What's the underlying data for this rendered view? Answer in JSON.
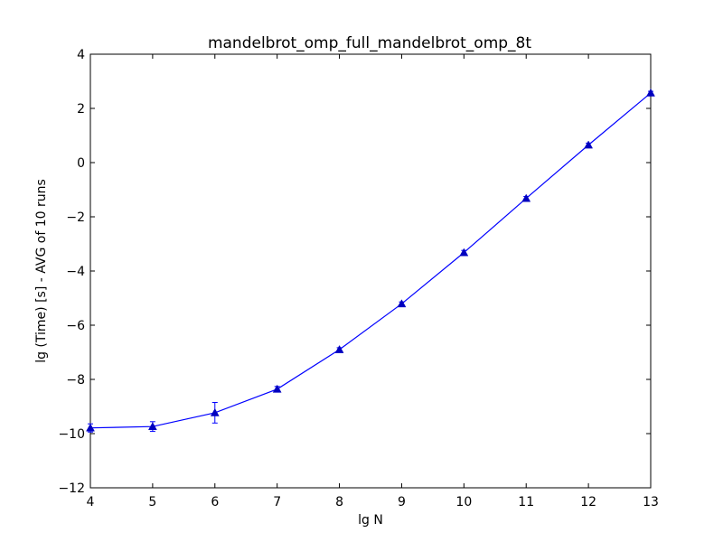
{
  "chart_data": {
    "type": "line",
    "title": "mandelbrot_omp_full_mandelbrot_omp_8t",
    "xlabel": "lg N",
    "ylabel": "lg (Time) [s] - AVG of 10 runs",
    "xlim": [
      4,
      13
    ],
    "ylim": [
      -12,
      4
    ],
    "xticks": [
      4,
      5,
      6,
      7,
      8,
      9,
      10,
      11,
      12,
      13
    ],
    "yticks": [
      -12,
      -10,
      -8,
      -6,
      -4,
      -2,
      0,
      2,
      4
    ],
    "xtick_labels": [
      "4",
      "5",
      "6",
      "7",
      "8",
      "9",
      "10",
      "11",
      "12",
      "13"
    ],
    "ytick_labels": [
      "−12",
      "−10",
      "−8",
      "−6",
      "−4",
      "−2",
      "0",
      "2",
      "4"
    ],
    "grid": false,
    "legend": false,
    "marker": "triangle",
    "line_color": "#0000ff",
    "marker_color": "#0000bf",
    "errorbar_color": "#0000ff",
    "series": [
      {
        "x": [
          4,
          5,
          6,
          7,
          8,
          9,
          10,
          11,
          12,
          13
        ],
        "y": [
          -9.79,
          -9.74,
          -9.23,
          -8.36,
          -6.9,
          -5.21,
          -3.32,
          -1.32,
          0.65,
          2.57
        ],
        "yerr": [
          0.15,
          0.18,
          0.38,
          0.1,
          0.07,
          0.07,
          0.08,
          0.07,
          0.07,
          0.06
        ]
      }
    ]
  }
}
